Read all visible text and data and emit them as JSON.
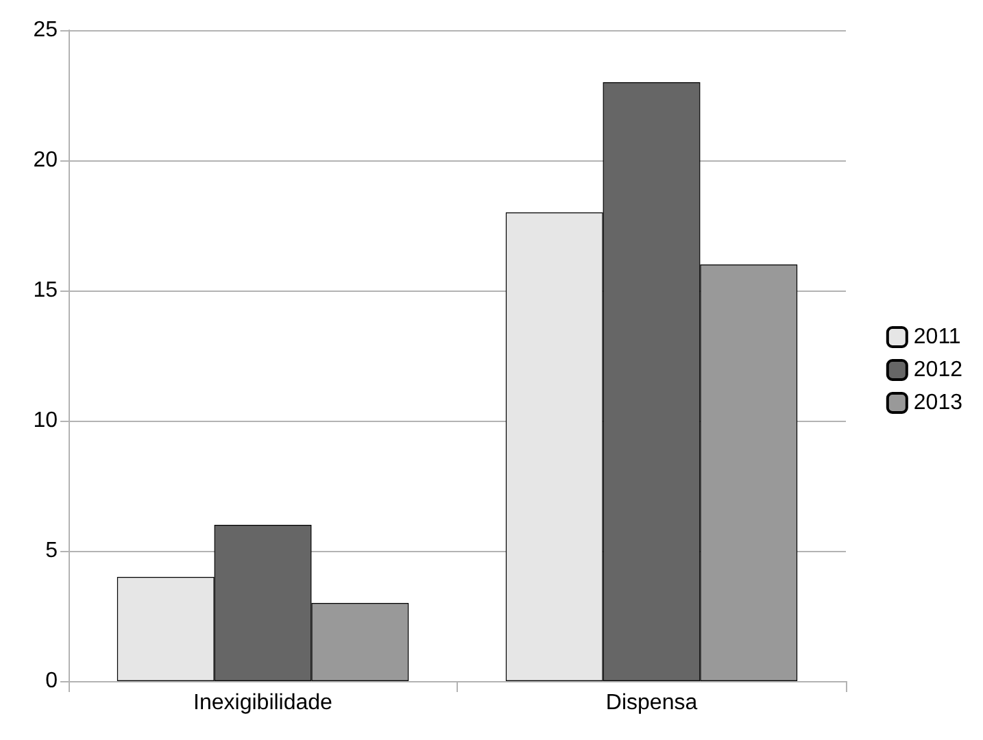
{
  "chart_data": {
    "type": "bar",
    "categories": [
      "Inexigibilidade",
      "Dispensa"
    ],
    "series": [
      {
        "name": "2011",
        "color": "#e6e6e6",
        "values": [
          4,
          18
        ]
      },
      {
        "name": "2012",
        "color": "#666666",
        "values": [
          6,
          23
        ]
      },
      {
        "name": "2013",
        "color": "#999999",
        "values": [
          3,
          16
        ]
      }
    ],
    "ylim": [
      0,
      25
    ],
    "yticks": [
      0,
      5,
      10,
      15,
      20,
      25
    ],
    "grid": "y",
    "legend": "right"
  }
}
